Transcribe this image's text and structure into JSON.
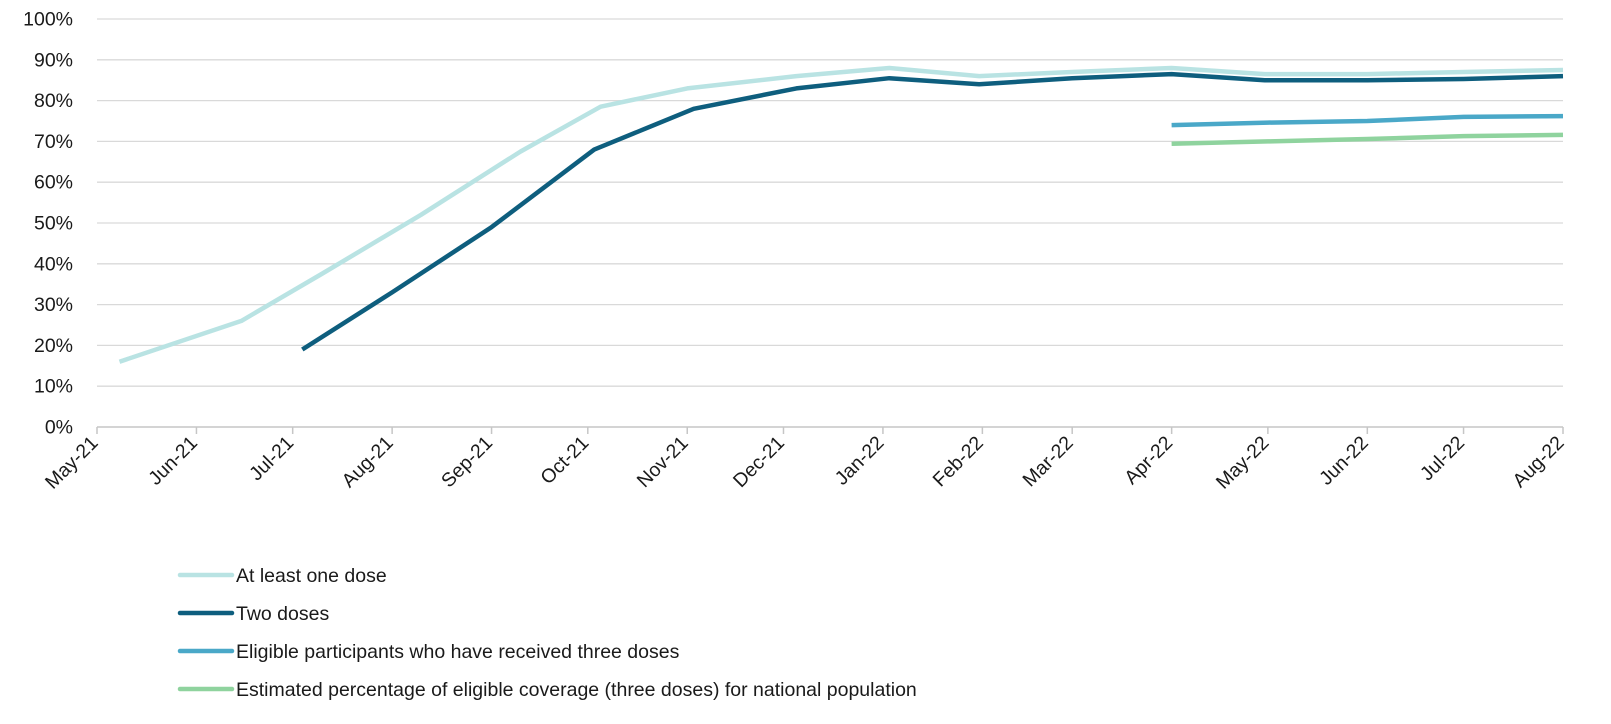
{
  "chart_data": {
    "type": "line",
    "title": "",
    "xlabel": "",
    "ylabel": "",
    "ylim": [
      0,
      100
    ],
    "y_ticks": [
      0,
      10,
      20,
      30,
      40,
      50,
      60,
      70,
      80,
      90,
      100
    ],
    "y_tick_labels": [
      "0%",
      "10%",
      "20%",
      "30%",
      "40%",
      "50%",
      "60%",
      "70%",
      "80%",
      "90%",
      "100%"
    ],
    "categories": [
      "May-21",
      "Jun-21",
      "Jul-21",
      "Aug-21",
      "Sep-21",
      "Oct-21",
      "Nov-21",
      "Dec-21",
      "Jan-22",
      "Feb-22",
      "Mar-22",
      "Apr-22",
      "May-22",
      "Jun-22",
      "Jul-22",
      "Aug-22"
    ],
    "grid": true,
    "legend_position": "bottom-left",
    "series": [
      {
        "name": "At least one dose",
        "color": "#b9e3e3",
        "points": [
          {
            "date": "2021-05-08",
            "value": 16
          },
          {
            "date": "2021-06-15",
            "value": 26
          },
          {
            "date": "2021-07-10",
            "value": 37.5
          },
          {
            "date": "2021-08-10",
            "value": 52
          },
          {
            "date": "2021-09-10",
            "value": 67.5
          },
          {
            "date": "2021-10-05",
            "value": 78.5
          },
          {
            "date": "2021-11-01",
            "value": 83
          },
          {
            "date": "2021-12-05",
            "value": 86
          },
          {
            "date": "2022-01-03",
            "value": 88
          },
          {
            "date": "2022-01-31",
            "value": 86
          },
          {
            "date": "2022-03-01",
            "value": 87
          },
          {
            "date": "2022-04-01",
            "value": 88
          },
          {
            "date": "2022-04-30",
            "value": 86.5
          },
          {
            "date": "2022-06-01",
            "value": 86.5
          },
          {
            "date": "2022-07-01",
            "value": 87
          },
          {
            "date": "2022-08-01",
            "value": 87.5
          }
        ]
      },
      {
        "name": "Two doses",
        "color": "#0e5e7e",
        "points": [
          {
            "date": "2021-07-04",
            "value": 19
          },
          {
            "date": "2021-08-01",
            "value": 33
          },
          {
            "date": "2021-09-01",
            "value": 49
          },
          {
            "date": "2021-10-03",
            "value": 68
          },
          {
            "date": "2021-11-03",
            "value": 78
          },
          {
            "date": "2021-12-05",
            "value": 83
          },
          {
            "date": "2022-01-03",
            "value": 85.5
          },
          {
            "date": "2022-01-31",
            "value": 84
          },
          {
            "date": "2022-03-01",
            "value": 85.5
          },
          {
            "date": "2022-04-01",
            "value": 86.5
          },
          {
            "date": "2022-04-30",
            "value": 85
          },
          {
            "date": "2022-06-01",
            "value": 85
          },
          {
            "date": "2022-07-01",
            "value": 85.3
          },
          {
            "date": "2022-08-01",
            "value": 86
          }
        ]
      },
      {
        "name": "Eligible participants who have received three doses",
        "color": "#4aa8c8",
        "points": [
          {
            "date": "2022-04-01",
            "value": 74
          },
          {
            "date": "2022-05-01",
            "value": 74.6
          },
          {
            "date": "2022-06-01",
            "value": 75
          },
          {
            "date": "2022-07-01",
            "value": 76
          },
          {
            "date": "2022-08-01",
            "value": 76.2
          }
        ]
      },
      {
        "name": "Estimated percentage of eligible coverage (three doses) for national population",
        "color": "#8fd39e",
        "points": [
          {
            "date": "2022-04-01",
            "value": 69.4
          },
          {
            "date": "2022-05-01",
            "value": 70
          },
          {
            "date": "2022-06-01",
            "value": 70.6
          },
          {
            "date": "2022-07-01",
            "value": 71.3
          },
          {
            "date": "2022-08-01",
            "value": 71.6
          }
        ]
      }
    ]
  }
}
